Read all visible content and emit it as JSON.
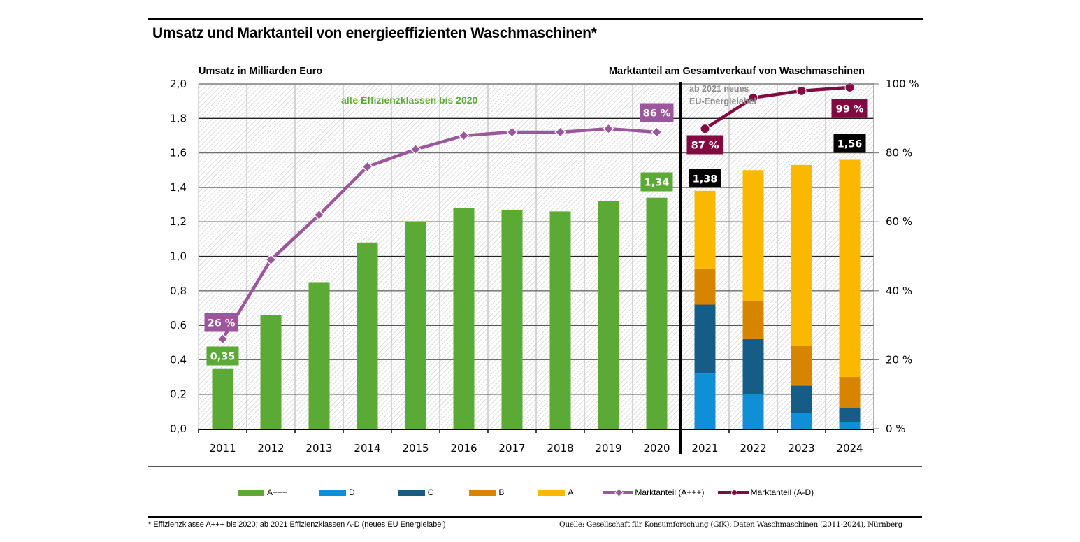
{
  "title": "Umsatz und Marktanteil von energieeffizienten Waschmaschinen*",
  "chart_data": {
    "type": "bar",
    "subtype": "stacked-bar-with-lines-dual-axis",
    "title": "Umsatz und Marktanteil von energieeffizienten Waschmaschinen*",
    "ylabel_left": "Umsatz in Milliarden Euro",
    "ylabel_right": "Marktanteil am Gesamtverkauf von Waschmaschinen",
    "xlabel": "",
    "categories": [
      "2011",
      "2012",
      "2013",
      "2014",
      "2015",
      "2016",
      "2017",
      "2018",
      "2019",
      "2020",
      "2021",
      "2022",
      "2023",
      "2024"
    ],
    "ylim_left": [
      0,
      2.0
    ],
    "ylim_right": [
      0,
      100
    ],
    "yticks_left": [
      "0,0",
      "0,2",
      "0,4",
      "0,6",
      "0,8",
      "1,0",
      "1,2",
      "1,4",
      "1,6",
      "1,8",
      "2,0"
    ],
    "yticks_right": [
      "0 %",
      "20 %",
      "40 %",
      "60 %",
      "80 %",
      "100 %"
    ],
    "grid": true,
    "legend_position": "bottom",
    "series": [
      {
        "name": "A+++",
        "kind": "bar",
        "axis": "left",
        "color": "#5aaa35",
        "values": [
          0.35,
          0.66,
          0.85,
          1.08,
          1.2,
          1.28,
          1.27,
          1.26,
          1.32,
          1.34,
          null,
          null,
          null,
          null
        ]
      },
      {
        "name": "D",
        "kind": "bar",
        "axis": "left",
        "stack": "AD",
        "color": "#0f90d6",
        "values": [
          null,
          null,
          null,
          null,
          null,
          null,
          null,
          null,
          null,
          null,
          0.32,
          0.2,
          0.09,
          0.04
        ]
      },
      {
        "name": "C",
        "kind": "bar",
        "axis": "left",
        "stack": "AD",
        "color": "#155d86",
        "values": [
          null,
          null,
          null,
          null,
          null,
          null,
          null,
          null,
          null,
          null,
          0.4,
          0.32,
          0.16,
          0.08
        ]
      },
      {
        "name": "B",
        "kind": "bar",
        "axis": "left",
        "stack": "AD",
        "color": "#d78400",
        "values": [
          null,
          null,
          null,
          null,
          null,
          null,
          null,
          null,
          null,
          null,
          0.21,
          0.22,
          0.23,
          0.18
        ]
      },
      {
        "name": "A",
        "kind": "bar",
        "axis": "left",
        "stack": "AD",
        "color": "#fab900",
        "values": [
          null,
          null,
          null,
          null,
          null,
          null,
          null,
          null,
          null,
          null,
          0.45,
          0.76,
          1.05,
          1.26
        ]
      },
      {
        "name": "Marktanteil (A+++)",
        "kind": "line",
        "axis": "right",
        "marker": "diamond",
        "color": "#9c579c",
        "values": [
          26,
          49,
          62,
          76,
          81,
          85,
          86,
          86,
          87,
          86,
          null,
          null,
          null,
          null
        ]
      },
      {
        "name": "Marktanteil (A-D)",
        "kind": "line",
        "axis": "right",
        "marker": "circle",
        "color": "#820a40",
        "values": [
          null,
          null,
          null,
          null,
          null,
          null,
          null,
          null,
          null,
          null,
          87,
          96,
          98,
          99
        ]
      }
    ],
    "data_labels": [
      {
        "category": "2011",
        "text": "0,35",
        "series": "A+++",
        "style": "green"
      },
      {
        "category": "2020",
        "text": "1,34",
        "series": "A+++",
        "style": "green"
      },
      {
        "category": "2021",
        "text": "1,38",
        "series": "total",
        "style": "black"
      },
      {
        "category": "2024",
        "text": "1,56",
        "series": "total",
        "style": "black"
      },
      {
        "category": "2011",
        "text": "26 %",
        "series": "Marktanteil (A+++)",
        "style": "purple"
      },
      {
        "category": "2020",
        "text": "86 %",
        "series": "Marktanteil (A+++)",
        "style": "purple"
      },
      {
        "category": "2021",
        "text": "87  %",
        "series": "Marktanteil (A-D)",
        "style": "maroon"
      },
      {
        "category": "2024",
        "text": "99  %",
        "series": "Marktanteil (A-D)",
        "style": "maroon"
      }
    ],
    "annotations": [
      {
        "text": "alte Effizienzklassen bis 2020",
        "color": "#5aaa35"
      },
      {
        "text": "ab 2021 neues",
        "color": "#8c8c8c"
      },
      {
        "text": "EU-Energielabel",
        "color": "#8c8c8c"
      }
    ]
  },
  "legend": [
    {
      "label": "A+++",
      "type": "bar",
      "color": "#5aaa35"
    },
    {
      "label": "D",
      "type": "bar",
      "color": "#0f90d6"
    },
    {
      "label": "C",
      "type": "bar",
      "color": "#155d86"
    },
    {
      "label": "B",
      "type": "bar",
      "color": "#d78400"
    },
    {
      "label": "A",
      "type": "bar",
      "color": "#fab900"
    },
    {
      "label": "Marktanteil (A+++)",
      "type": "line-diamond",
      "color": "#9c579c"
    },
    {
      "label": "Marktanteil (A-D)",
      "type": "line-circle",
      "color": "#820a40"
    }
  ],
  "footnote": "* Effizienzklasse A+++ bis 2020; ab 2021 Effizienzklassen A-D (neues EU Energielabel)",
  "source": "Quelle: Gesellschaft für Konsumforschung (GfK), Daten Waschmaschinen (2011-2024), Nürnberg",
  "label_colors": {
    "green": "#5aaa35",
    "black": "#000000",
    "purple": "#9c579c",
    "maroon": "#820a40"
  }
}
